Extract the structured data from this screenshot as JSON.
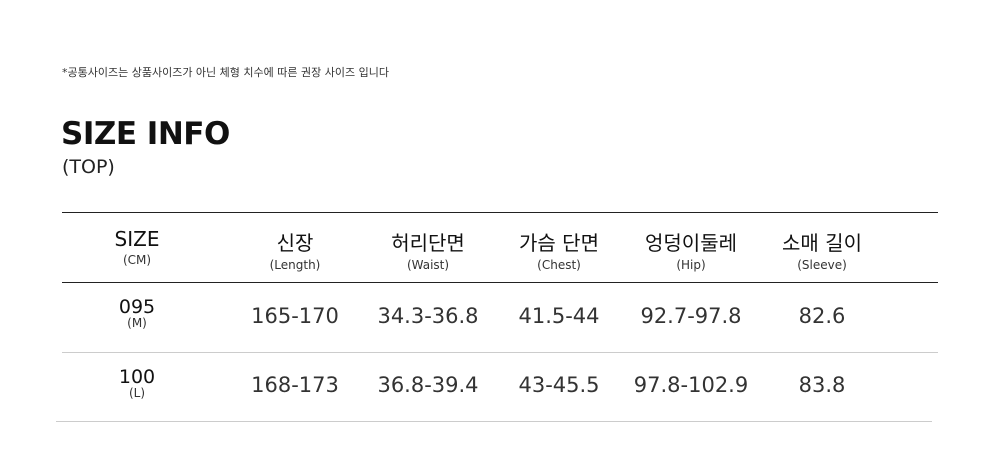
{
  "note": "*공통사이즈는 상품사이즈가 아닌 체형 치수에 따른 권장 사이즈 입니다",
  "title": "SIZE INFO",
  "subtitle": "(TOP)",
  "headers": [
    {
      "label": "SIZE",
      "sub": "(CM)"
    },
    {
      "label": "신장",
      "sub": "(Length)"
    },
    {
      "label": "허리단면",
      "sub": "(Waist)"
    },
    {
      "label": "가슴 단면",
      "sub": "(Chest)"
    },
    {
      "label": "엉덩이둘레",
      "sub": "(Hip)"
    },
    {
      "label": "소매 길이",
      "sub": "(Sleeve)"
    }
  ],
  "rows": [
    {
      "size": "095",
      "size_sub": "(M)",
      "values": [
        "165-170",
        "34.3-36.8",
        "41.5-44",
        "92.7-97.8",
        "82.6"
      ]
    },
    {
      "size": "100",
      "size_sub": "(L)",
      "values": [
        "168-173",
        "36.8-39.4",
        "43-45.5",
        "97.8-102.9",
        "83.8"
      ]
    }
  ]
}
